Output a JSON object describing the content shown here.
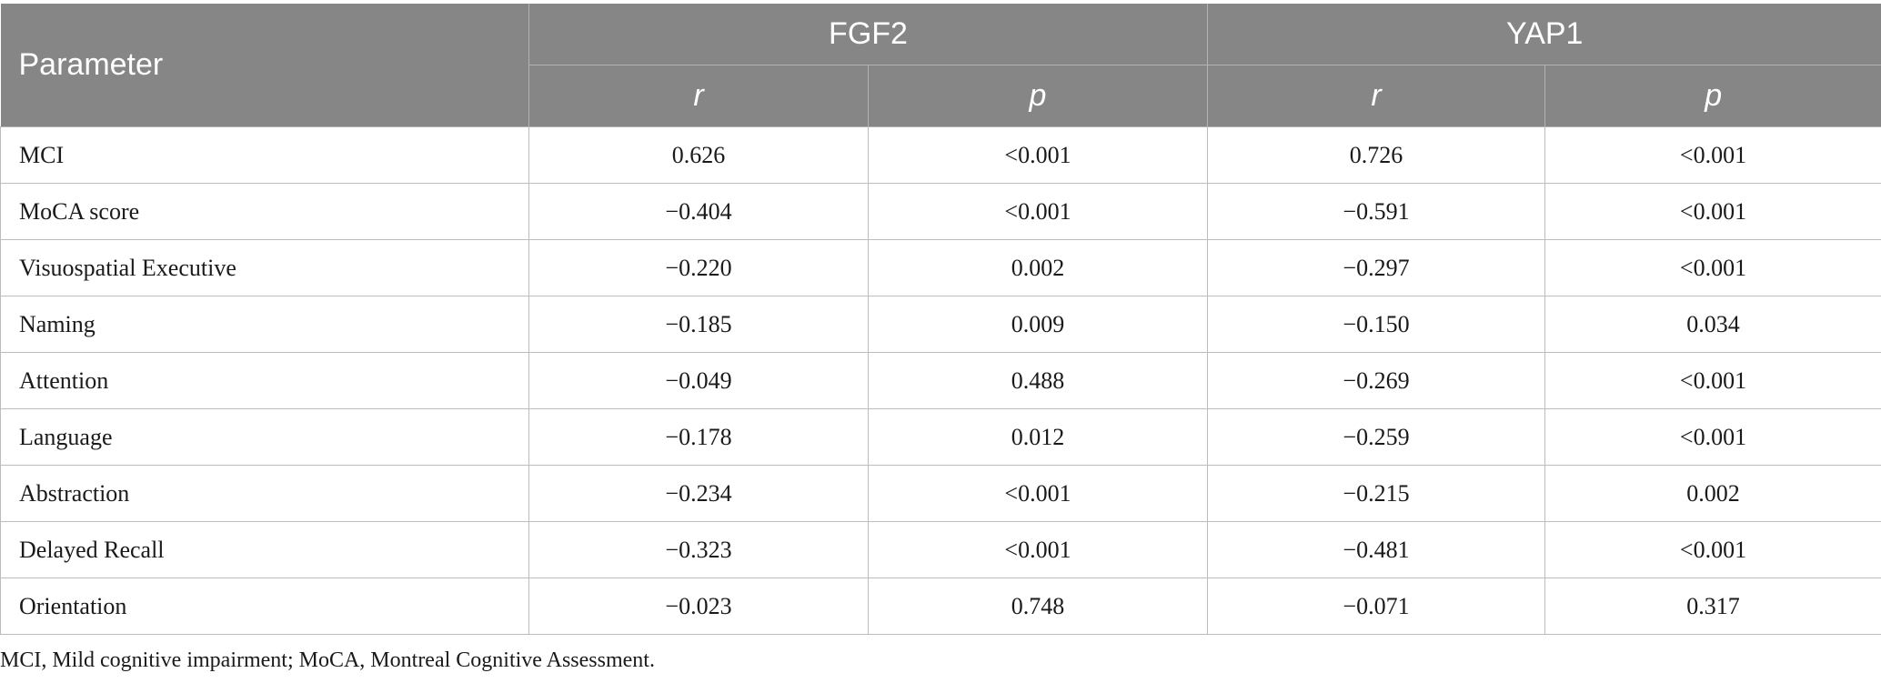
{
  "table": {
    "header": {
      "parameter": "Parameter",
      "groups": [
        "FGF2",
        "YAP1"
      ],
      "sub": [
        "r",
        "p",
        "r",
        "p"
      ]
    },
    "rows": [
      {
        "label": "MCI",
        "values": [
          "0.626",
          "<0.001",
          "0.726",
          "<0.001"
        ]
      },
      {
        "label": "MoCA score",
        "values": [
          "−0.404",
          "<0.001",
          "−0.591",
          "<0.001"
        ]
      },
      {
        "label": "Visuospatial Executive",
        "values": [
          "−0.220",
          "0.002",
          "−0.297",
          "<0.001"
        ]
      },
      {
        "label": "Naming",
        "values": [
          "−0.185",
          "0.009",
          "−0.150",
          "0.034"
        ]
      },
      {
        "label": "Attention",
        "values": [
          "−0.049",
          "0.488",
          "−0.269",
          "<0.001"
        ]
      },
      {
        "label": "Language",
        "values": [
          "−0.178",
          "0.012",
          "−0.259",
          "<0.001"
        ]
      },
      {
        "label": "Abstraction",
        "values": [
          "−0.234",
          "<0.001",
          "−0.215",
          "0.002"
        ]
      },
      {
        "label": "Delayed Recall",
        "values": [
          "−0.323",
          "<0.001",
          "−0.481",
          "<0.001"
        ]
      },
      {
        "label": "Orientation",
        "values": [
          "−0.023",
          "0.748",
          "−0.071",
          "0.317"
        ]
      }
    ]
  },
  "footnote": "MCI, Mild cognitive impairment; MoCA, Montreal Cognitive Assessment.",
  "colors": {
    "header_bg": "#868686",
    "header_text": "#ffffff",
    "grid": "#bcbcbc"
  }
}
